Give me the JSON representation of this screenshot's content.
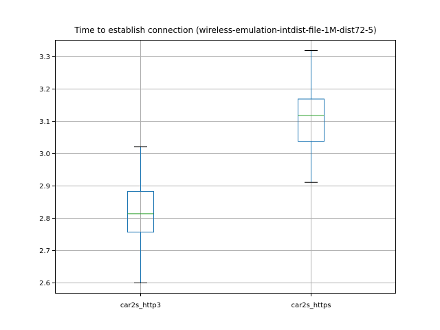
{
  "chart_data": {
    "type": "box",
    "title": "Time to establish connection (wireless-emulation-intdist-file-1M-dist72-5)",
    "xlabel": "",
    "ylabel": "",
    "categories": [
      "car2s_http3",
      "car2s_https"
    ],
    "boxes": [
      {
        "name": "car2s_http3",
        "whisker_low": 2.598,
        "q1": 2.755,
        "median": 2.812,
        "q3": 2.881,
        "whisker_high": 3.019
      },
      {
        "name": "car2s_https",
        "whisker_low": 2.909,
        "q1": 3.036,
        "median": 3.116,
        "q3": 3.167,
        "whisker_high": 3.317
      }
    ],
    "ylim": [
      2.565,
      3.35
    ],
    "yticks": [
      2.6,
      2.7,
      2.8,
      2.9,
      3.0,
      3.1,
      3.2,
      3.3
    ],
    "ytick_labels": [
      "2.6",
      "2.7",
      "2.8",
      "2.9",
      "3.0",
      "3.1",
      "3.2",
      "3.3"
    ],
    "grid": true,
    "colors": {
      "box": "#1f77b4",
      "median": "#2ca02c",
      "whisker_cap": "#000000",
      "grid": "#b0b0b0"
    }
  }
}
